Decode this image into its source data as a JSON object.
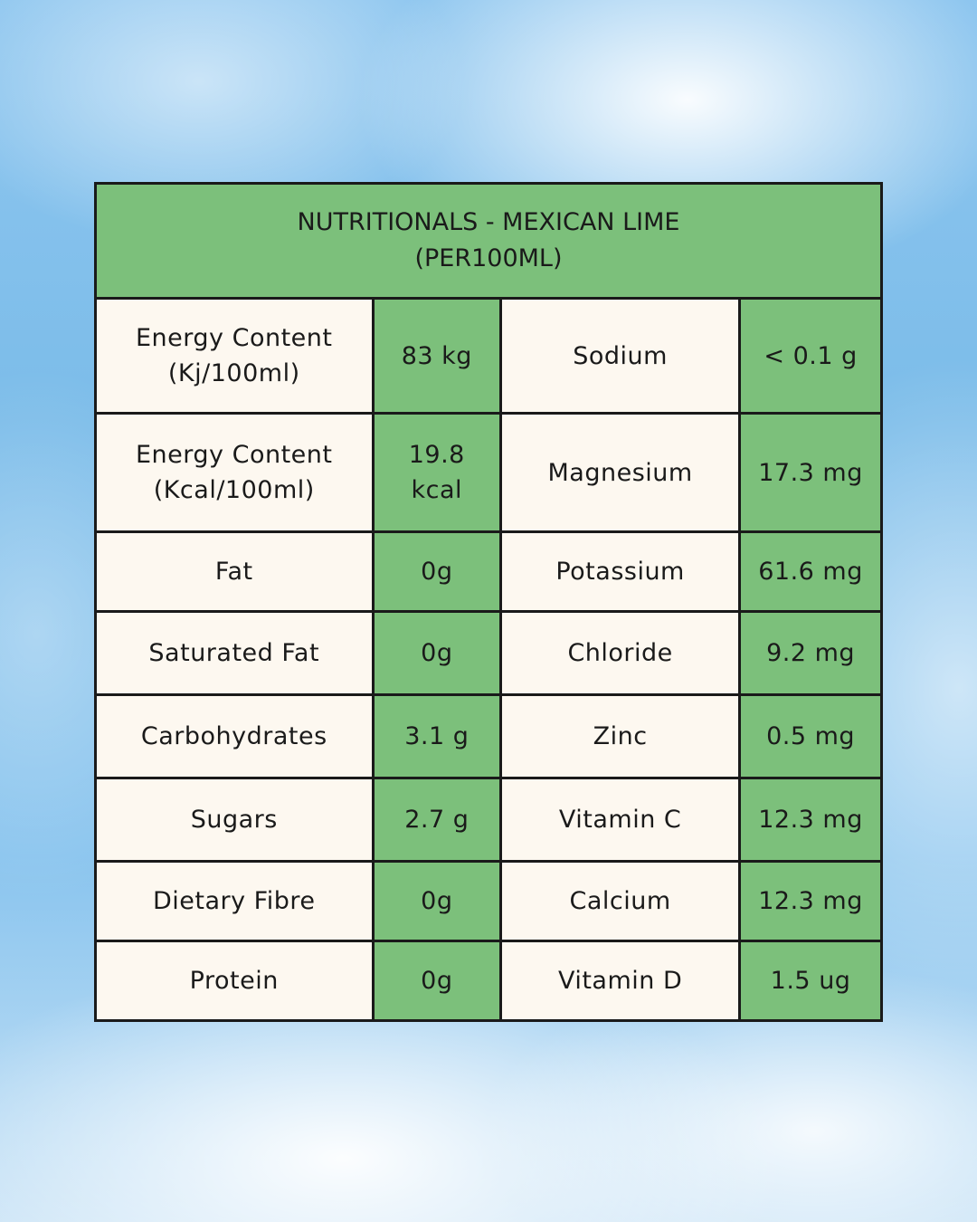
{
  "title": {
    "line1": "NUTRITIONALS - MEXICAN LIME",
    "line2": "(PER100ML)"
  },
  "rows": [
    {
      "left_label": [
        "Energy Content",
        "(Kj/100ml)"
      ],
      "left_value": [
        "83 kg"
      ],
      "right_label": [
        "Sodium"
      ],
      "right_value": [
        "< 0.1 g"
      ]
    },
    {
      "left_label": [
        "Energy Content",
        "(Kcal/100ml)"
      ],
      "left_value": [
        "19.8",
        "kcal"
      ],
      "right_label": [
        "Magnesium"
      ],
      "right_value": [
        "17.3 mg"
      ]
    },
    {
      "left_label": [
        "Fat"
      ],
      "left_value": [
        "0g"
      ],
      "right_label": [
        "Potassium"
      ],
      "right_value": [
        "61.6 mg"
      ]
    },
    {
      "left_label": [
        "Saturated Fat"
      ],
      "left_value": [
        "0g"
      ],
      "right_label": [
        "Chloride"
      ],
      "right_value": [
        "9.2 mg"
      ]
    },
    {
      "left_label": [
        "Carbohydrates"
      ],
      "left_value": [
        "3.1 g"
      ],
      "right_label": [
        "Zinc"
      ],
      "right_value": [
        "0.5 mg"
      ]
    },
    {
      "left_label": [
        "Sugars"
      ],
      "left_value": [
        "2.7 g"
      ],
      "right_label": [
        "Vitamin C"
      ],
      "right_value": [
        "12.3 mg"
      ]
    },
    {
      "left_label": [
        "Dietary Fibre"
      ],
      "left_value": [
        "0g"
      ],
      "right_label": [
        "Calcium"
      ],
      "right_value": [
        "12.3 mg"
      ]
    },
    {
      "left_label": [
        "Protein"
      ],
      "left_value": [
        "0g"
      ],
      "right_label": [
        "Vitamin D"
      ],
      "right_value": [
        "1.5 ug"
      ]
    }
  ],
  "colors": {
    "header_green": "#7cc07b",
    "value_green": "#7cc07b",
    "label_cream": "#fdf8f0",
    "border": "#1a1a1a",
    "sky_blue": "#7bbce9"
  }
}
